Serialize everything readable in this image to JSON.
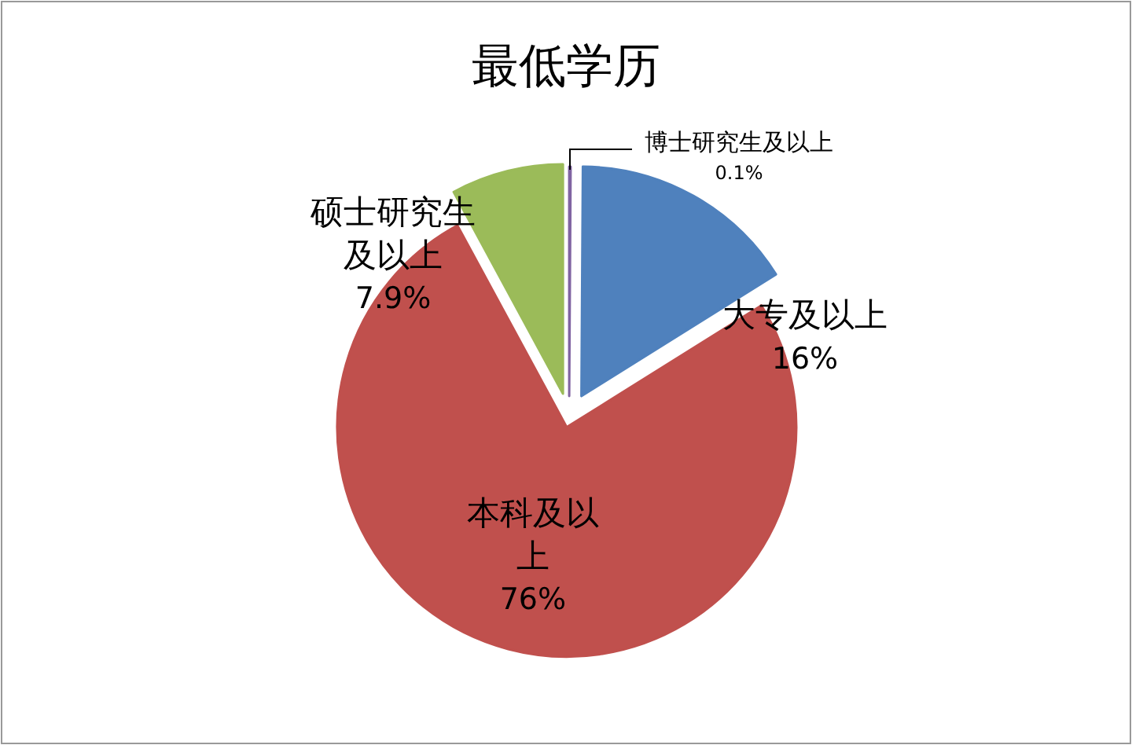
{
  "chart_data": {
    "type": "pie",
    "title": "最低学历",
    "categories": [
      "博士研究生及以上",
      "大专及以上",
      "本科及以上",
      "硕士研究生及以上"
    ],
    "values": [
      0.1,
      16,
      76,
      7.9
    ],
    "colors": [
      "#8064a2",
      "#4f81bd",
      "#c0504d",
      "#9bbb59"
    ],
    "value_labels": [
      "0.1%",
      "16%",
      "76%",
      "7.9%"
    ]
  }
}
